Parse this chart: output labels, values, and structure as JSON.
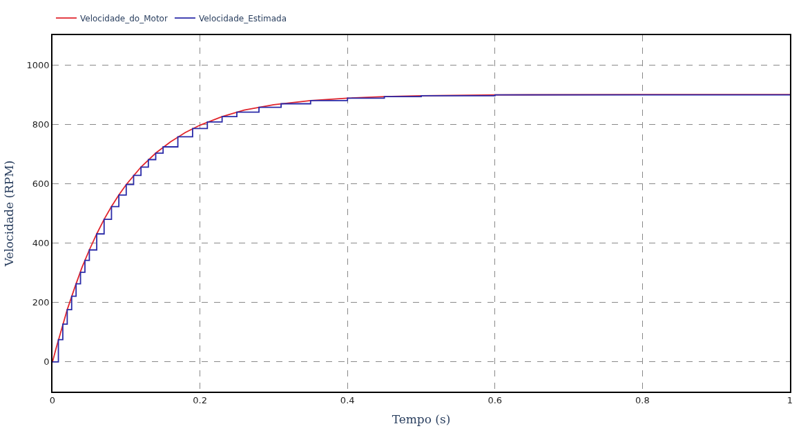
{
  "chart_data": {
    "type": "line",
    "xlabel": "Tempo (s)",
    "ylabel": "Velocidade (RPM)",
    "xlim": [
      0,
      1
    ],
    "xticks": [
      0,
      0.2,
      0.4,
      0.6,
      0.8,
      1
    ],
    "ylim": [
      -100,
      1100
    ],
    "yticks": [
      0,
      200,
      400,
      600,
      800,
      1000
    ],
    "grid": true,
    "legend": "top left",
    "marker": "none",
    "line_style": "solid",
    "series": [
      {
        "name": "Velocidade_do_Motor",
        "color": "#e0242c",
        "x": [
          0,
          0.005,
          0.01,
          0.02,
          0.03,
          0.04,
          0.05,
          0.06,
          0.07,
          0.08,
          0.09,
          0.1,
          0.12,
          0.14,
          0.16,
          0.18,
          0.2,
          0.23,
          0.26,
          0.3,
          0.35,
          0.4,
          0.45,
          0.5,
          0.6,
          0.8,
          1.0
        ],
        "values": [
          0,
          47,
          90,
          176,
          249,
          318,
          377,
          431,
          480,
          523,
          562,
          597,
          656,
          703,
          741,
          772,
          797,
          826,
          848,
          866,
          880,
          888,
          893,
          896,
          899,
          900,
          900
        ]
      },
      {
        "name": "Velocidade_Estimada",
        "color": "#2a2aa8",
        "type": "step",
        "x": [
          0,
          0.008,
          0.014,
          0.02,
          0.026,
          0.032,
          0.038,
          0.044,
          0.05,
          0.06,
          0.07,
          0.08,
          0.09,
          0.1,
          0.11,
          0.12,
          0.13,
          0.14,
          0.15,
          0.17,
          0.19,
          0.21,
          0.23,
          0.25,
          0.28,
          0.31,
          0.35,
          0.4,
          0.45,
          0.5,
          0.6,
          1.0
        ],
        "values": [
          0,
          75,
          127,
          176,
          221,
          263,
          302,
          342,
          377,
          431,
          480,
          523,
          562,
          597,
          628,
          656,
          681,
          703,
          724,
          758,
          786,
          808,
          826,
          841,
          857,
          869,
          880,
          888,
          893,
          896,
          899,
          900
        ]
      }
    ]
  }
}
